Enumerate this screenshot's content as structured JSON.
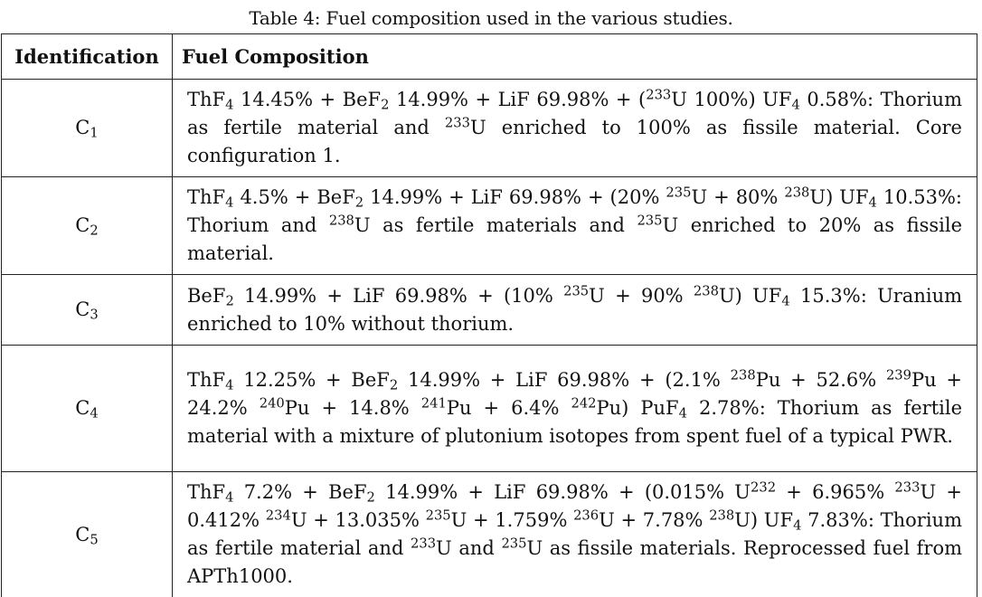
{
  "caption": "Table 4: Fuel composition used in the various studies.",
  "headers": {
    "identification": "Identification",
    "composition": "Fuel Composition"
  },
  "rows": [
    {
      "id": {
        "base": "C",
        "sub": "1"
      },
      "parts": [
        {
          "t": "ThF"
        },
        {
          "sub": "4"
        },
        {
          "t": " 14.45% + BeF"
        },
        {
          "sub": "2"
        },
        {
          "t": " 14.99% + LiF 69.98% + ("
        },
        {
          "sup": "233"
        },
        {
          "t": "U 100%) UF"
        },
        {
          "sub": "4"
        },
        {
          "t": " 0.58%: Thorium as fertile material and "
        },
        {
          "sup": "233"
        },
        {
          "t": "U enriched to 100% as fissile material. Core configuration 1."
        }
      ]
    },
    {
      "id": {
        "base": "C",
        "sub": "2"
      },
      "parts": [
        {
          "t": "ThF"
        },
        {
          "sub": "4"
        },
        {
          "t": " 4.5% + BeF"
        },
        {
          "sub": "2"
        },
        {
          "t": " 14.99% + LiF 69.98% + (20% "
        },
        {
          "sup": "235"
        },
        {
          "t": "U + 80% "
        },
        {
          "sup": "238"
        },
        {
          "t": "U) UF"
        },
        {
          "sub": "4"
        },
        {
          "t": " 10.53%: Thorium and "
        },
        {
          "sup": "238"
        },
        {
          "t": "U as fertile materials and "
        },
        {
          "sup": "235"
        },
        {
          "t": "U enriched to 20% as fissile material."
        }
      ]
    },
    {
      "id": {
        "base": "C",
        "sub": "3"
      },
      "parts": [
        {
          "t": "BeF"
        },
        {
          "sub": "2"
        },
        {
          "t": " 14.99% + LiF 69.98% + (10% "
        },
        {
          "sup": "235"
        },
        {
          "t": "U + 90% "
        },
        {
          "sup": "238"
        },
        {
          "t": "U) UF"
        },
        {
          "sub": "4"
        },
        {
          "t": " 15.3%: Uranium enriched to 10% without thorium."
        }
      ]
    },
    {
      "id": {
        "base": "C",
        "sub": "4"
      },
      "parts": [
        {
          "t": "ThF"
        },
        {
          "sub": "4"
        },
        {
          "t": " 12.25% + BeF"
        },
        {
          "sub": "2"
        },
        {
          "t": " 14.99% + LiF 69.98% + (2.1% "
        },
        {
          "sup": "238"
        },
        {
          "t": "Pu + 52.6% "
        },
        {
          "sup": "239"
        },
        {
          "t": "Pu + 24.2% "
        },
        {
          "sup": "240"
        },
        {
          "t": "Pu + 14.8% "
        },
        {
          "sup": "241"
        },
        {
          "t": "Pu + 6.4% "
        },
        {
          "sup": "242"
        },
        {
          "t": "Pu) PuF"
        },
        {
          "sub": "4"
        },
        {
          "t": " 2.78%: Thorium as fertile material with a mixture of plutonium isotopes from spent fuel of a typical PWR."
        }
      ]
    },
    {
      "id": {
        "base": "C",
        "sub": "5"
      },
      "parts": [
        {
          "t": "ThF"
        },
        {
          "sub": "4"
        },
        {
          "t": " 7.2% + BeF"
        },
        {
          "sub": "2"
        },
        {
          "t": " 14.99% + LiF 69.98% + (0.015% U"
        },
        {
          "sup": "232"
        },
        {
          "t": " + 6.965% "
        },
        {
          "sup": "233"
        },
        {
          "t": "U + 0.412% "
        },
        {
          "sup": "234"
        },
        {
          "t": "U + 13.035% "
        },
        {
          "sup": "235"
        },
        {
          "t": "U + 1.759% "
        },
        {
          "sup": "236"
        },
        {
          "t": "U + 7.78% "
        },
        {
          "sup": "238"
        },
        {
          "t": "U) UF"
        },
        {
          "sub": "4"
        },
        {
          "t": " 7.83%: Thorium as fertile material and "
        },
        {
          "sup": "233"
        },
        {
          "t": "U and "
        },
        {
          "sup": "235"
        },
        {
          "t": "U as fissile materials. Reprocessed fuel from APTh1000."
        }
      ]
    }
  ]
}
